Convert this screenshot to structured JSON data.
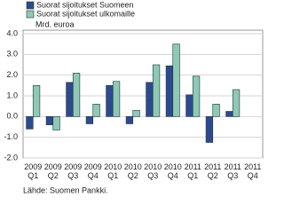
{
  "chart_data": {
    "type": "bar",
    "categories": [
      "2009 Q1",
      "2009 Q2",
      "2009 Q3",
      "2009 Q4",
      "2010 Q1",
      "2010 Q2",
      "2010 Q3",
      "2010 Q4",
      "2011 Q1",
      "2011 Q2",
      "2011 Q3",
      "2011 Q4"
    ],
    "series": [
      {
        "name": "Suorat sijoitukset Suomeen",
        "color": "#2d4b8c",
        "values": [
          -0.6,
          -0.4,
          1.65,
          -0.35,
          1.5,
          -0.35,
          1.65,
          2.45,
          1.05,
          -1.25,
          0.25,
          null
        ]
      },
      {
        "name": "Suorat sijoitukset ulkomaille",
        "color": "#8ecab2",
        "values": [
          1.5,
          -0.65,
          2.1,
          0.6,
          1.7,
          0.3,
          2.5,
          3.5,
          1.95,
          0.6,
          1.3,
          null
        ]
      }
    ],
    "unit_label": "Mrd. euroa",
    "source": "Lähde: Suomen Pankki.",
    "ylim": [
      -2,
      4
    ],
    "yticks": [
      {
        "value": -2,
        "label": "-2.0"
      },
      {
        "value": -1,
        "label": "-1.0"
      },
      {
        "value": 0,
        "label": "0.0"
      },
      {
        "value": 1,
        "label": "1.0"
      },
      {
        "value": 2,
        "label": "2.0"
      },
      {
        "value": 3,
        "label": "3.0"
      },
      {
        "value": 4,
        "label": "4.0"
      }
    ],
    "grid": true
  }
}
